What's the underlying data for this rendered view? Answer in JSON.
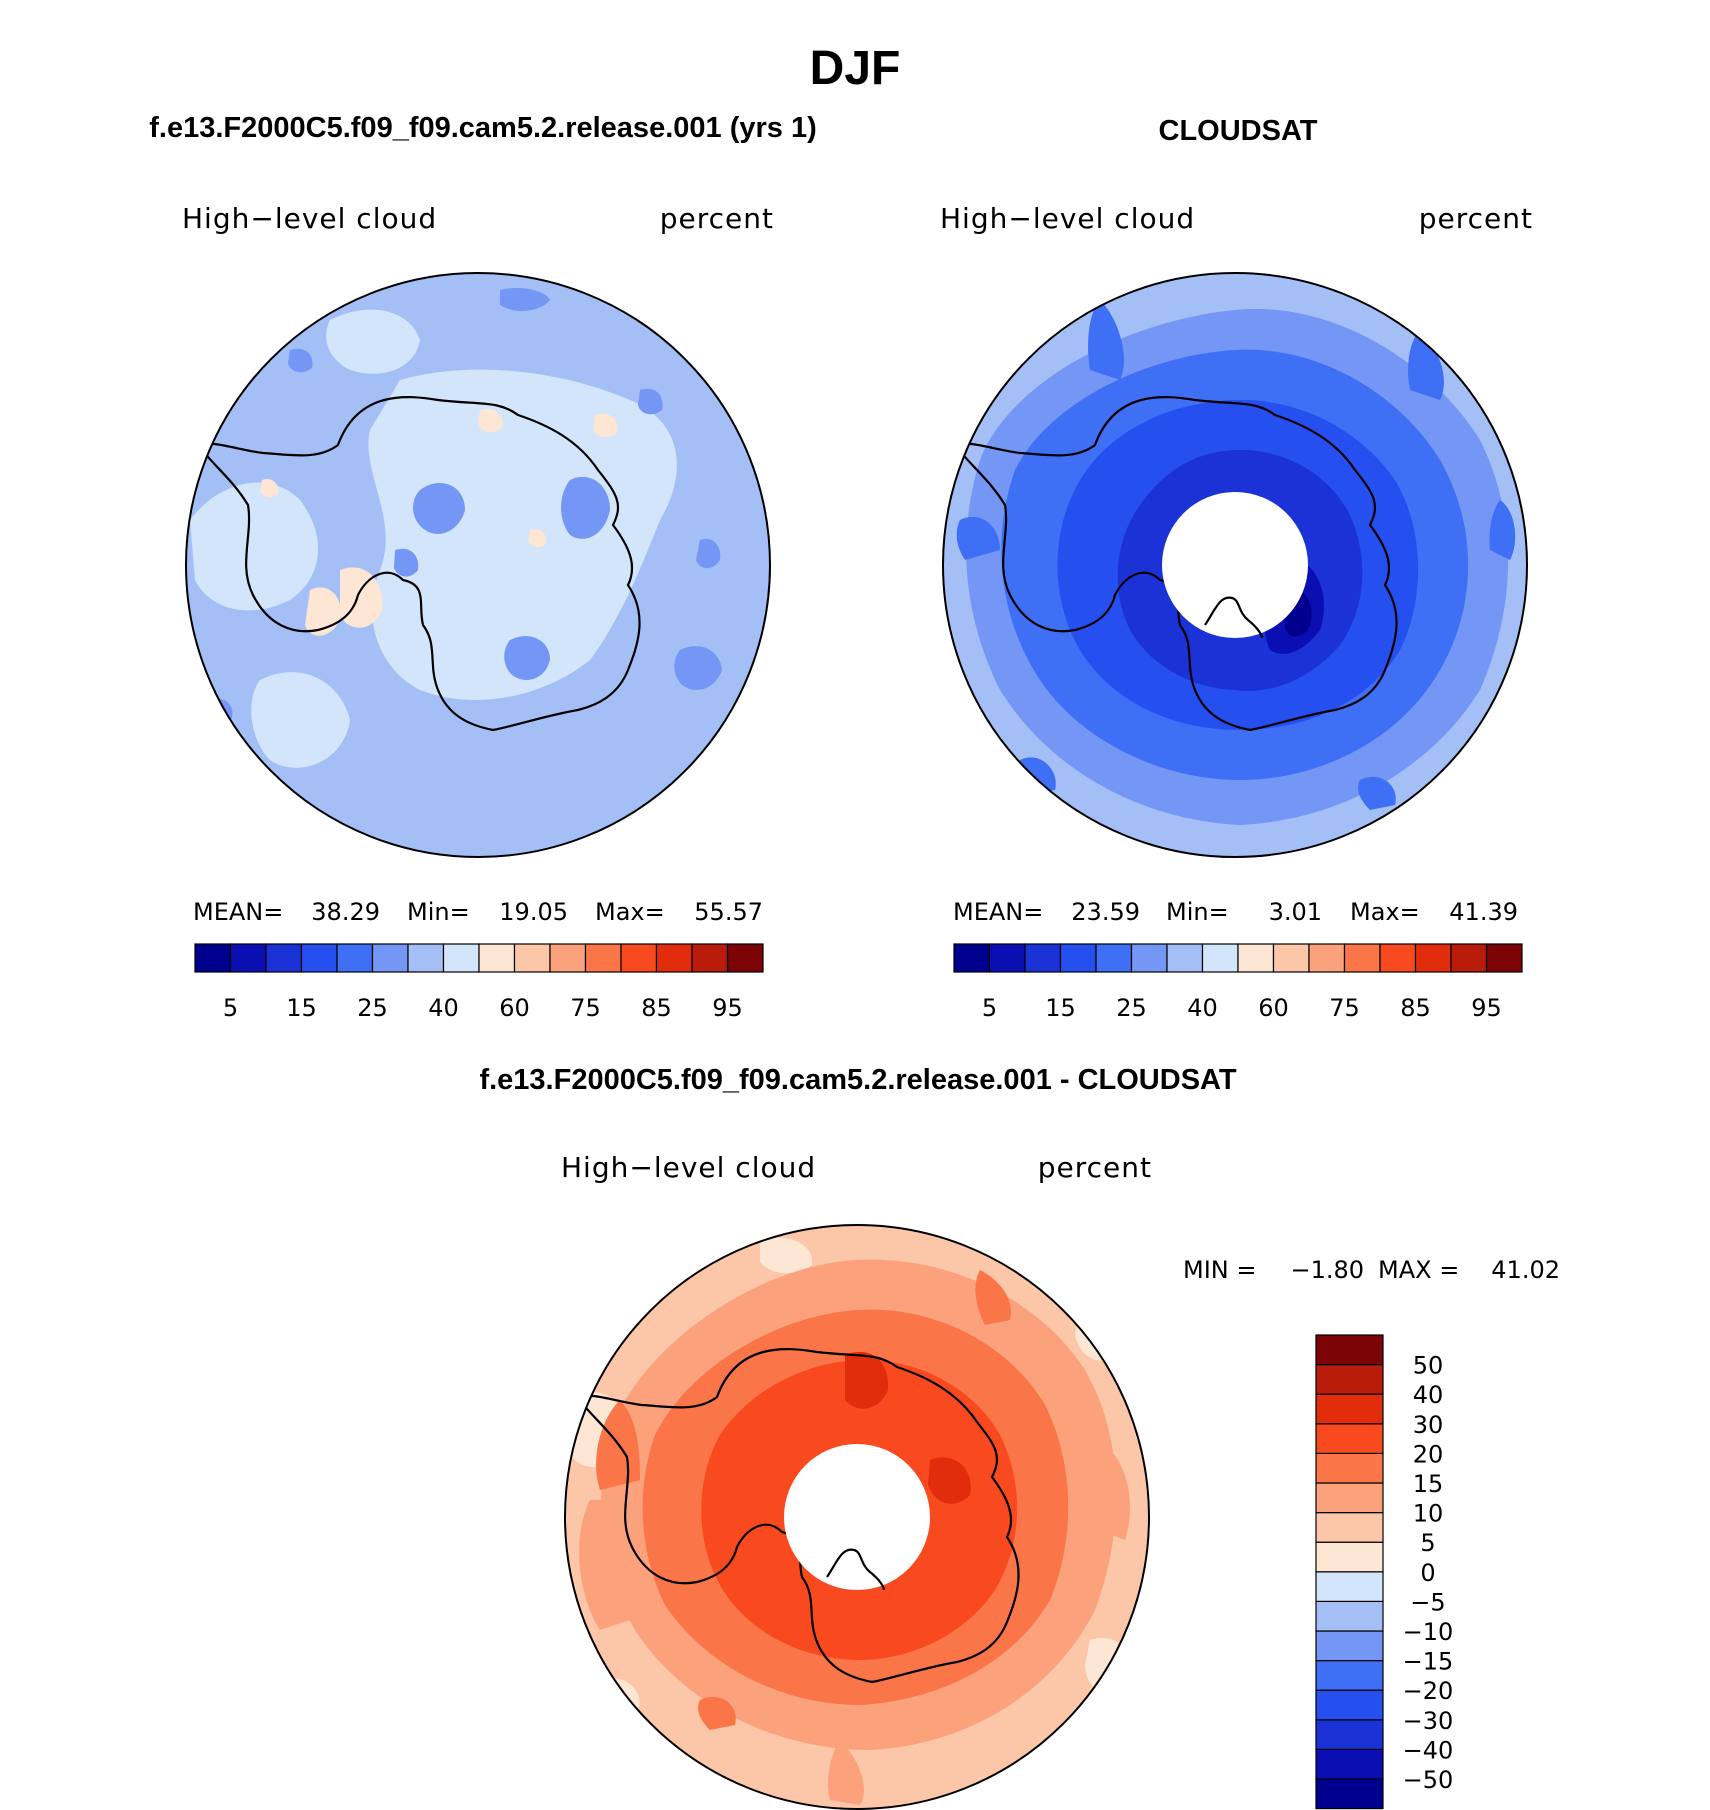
{
  "chart_data": {
    "type": "heatmap",
    "title": "DJF",
    "panels": [
      {
        "id": "model",
        "title": "f.e13.F2000C5.f09_f09.cam5.2.release.001 (yrs 1)",
        "field_label": "High−level cloud",
        "units_label": "percent",
        "stats": {
          "mean_label": "MEAN=",
          "mean": "38.29",
          "min_label": "Min=",
          "min": "19.05",
          "max_label": "Max=",
          "max": "55.57"
        },
        "colorbar": {
          "orientation": "horizontal",
          "levels": [
            5,
            10,
            15,
            20,
            25,
            30,
            40,
            50,
            60,
            70,
            75,
            80,
            85,
            90,
            95
          ],
          "tick_labels": [
            "5",
            "15",
            "25",
            "40",
            "60",
            "75",
            "85",
            "95"
          ],
          "colors": [
            "#00008f",
            "#0b0fb3",
            "#1a32d6",
            "#2550ef",
            "#3f6ff5",
            "#7497f5",
            "#a4bff6",
            "#d2e5fb",
            "#fde6d4",
            "#fcc6a8",
            "#fba17c",
            "#fa7547",
            "#f84a1e",
            "#e12d0c",
            "#b91c0a",
            "#7c0306"
          ]
        },
        "regions": [
          {
            "value_range": "25-30",
            "count": 10
          },
          {
            "value_range": "30-40",
            "coverage": "background"
          },
          {
            "value_range": "40-50",
            "count": 8
          },
          {
            "value_range": "50-60",
            "count": 6
          }
        ]
      },
      {
        "id": "obs",
        "title": "CLOUDSAT",
        "field_label": "High−level cloud",
        "units_label": "percent",
        "stats": {
          "mean_label": "MEAN=",
          "mean": "23.59",
          "min_label": "Min=",
          "min": "3.01",
          "max_label": "Max=",
          "max": "41.39"
        },
        "colorbar": {
          "orientation": "horizontal",
          "levels": [
            5,
            10,
            15,
            20,
            25,
            30,
            40,
            50,
            60,
            70,
            75,
            80,
            85,
            90,
            95
          ],
          "tick_labels": [
            "5",
            "15",
            "25",
            "40",
            "60",
            "75",
            "85",
            "95"
          ],
          "colors": [
            "#00008f",
            "#0b0fb3",
            "#1a32d6",
            "#2550ef",
            "#3f6ff5",
            "#7497f5",
            "#a4bff6",
            "#d2e5fb",
            "#fde6d4",
            "#fcc6a8",
            "#fba17c",
            "#fa7547",
            "#f84a1e",
            "#e12d0c",
            "#b91c0a",
            "#7c0306"
          ]
        },
        "missing_region": "polar cap (no data)"
      },
      {
        "id": "diff",
        "title": "f.e13.F2000C5.f09_f09.cam5.2.release.001 - CLOUDSAT",
        "field_label": "High−level cloud",
        "units_label": "percent",
        "stats": {
          "min_label": "MIN =",
          "min": "−1.80",
          "max_label": "MAX =",
          "max": "41.02"
        },
        "colorbar": {
          "orientation": "vertical",
          "levels": [
            -50,
            -40,
            -30,
            -20,
            -15,
            -10,
            -5,
            0,
            5,
            10,
            15,
            20,
            30,
            40,
            50
          ],
          "tick_labels": [
            "50",
            "40",
            "30",
            "20",
            "15",
            "10",
            "5",
            "0",
            "−5",
            "−10",
            "−15",
            "−20",
            "−30",
            "−40",
            "−50"
          ],
          "colors": [
            "#00008f",
            "#0b0fb3",
            "#1a32d6",
            "#2550ef",
            "#3f6ff5",
            "#7497f5",
            "#a4bff6",
            "#d2e5fb",
            "#fde6d4",
            "#fcc6a8",
            "#fba17c",
            "#fa7547",
            "#f84a1e",
            "#e12d0c",
            "#b91c0a",
            "#7c0306"
          ]
        },
        "missing_region": "polar cap (no data)"
      }
    ],
    "projection": "south polar stereographic",
    "coastline": "Antarctica"
  }
}
